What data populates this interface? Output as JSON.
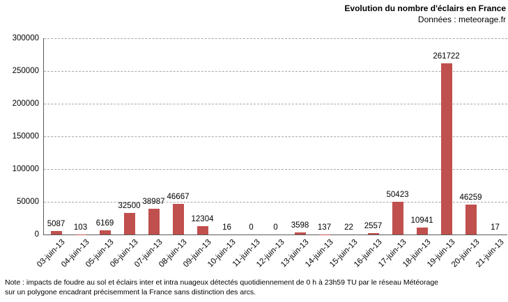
{
  "header": {
    "title": "Evolution du nombre d'éclairs en France",
    "subtitle": "Données : meteorage.fr"
  },
  "note": {
    "line1": "Note : impacts de foudre au sol et éclairs inter et intra nuageux détectés quotidiennement de 0 h à 23h59 TU par le réseau Météorage",
    "line2": "sur un polygone encadrant précisemment la France sans distinction des arcs."
  },
  "chart_data": {
    "type": "bar",
    "title": "Evolution du nombre d'éclairs en France",
    "subtitle": "Données : meteorage.fr",
    "categories": [
      "03-juin-13",
      "04-juin-13",
      "05-juin-13",
      "06-juin-13",
      "07-juin-13",
      "08-juin-13",
      "09-juin-13",
      "10-juin-13",
      "11-juin-13",
      "12-juin-13",
      "13-juin-13",
      "14-juin-13",
      "15-juin-13",
      "16-juin-13",
      "17-juin-13",
      "18-juin-13",
      "19-juin-13",
      "20-juin-13",
      "21-juin-13"
    ],
    "values": [
      5087,
      103,
      6169,
      32500,
      38987,
      46667,
      12304,
      16,
      0,
      0,
      3598,
      137,
      22,
      2557,
      50423,
      10941,
      261722,
      46259,
      17
    ],
    "xlabel": "",
    "ylabel": "",
    "ylim": [
      0,
      300000
    ],
    "yticks": [
      0,
      50000,
      100000,
      150000,
      200000,
      250000,
      300000
    ],
    "grid": "horizontal-dashed",
    "legend": "none",
    "data_labels": "outside-end",
    "bar_color": "#C0504D",
    "gridline_color": "#A6A6A6",
    "axis_color": "#595959"
  }
}
